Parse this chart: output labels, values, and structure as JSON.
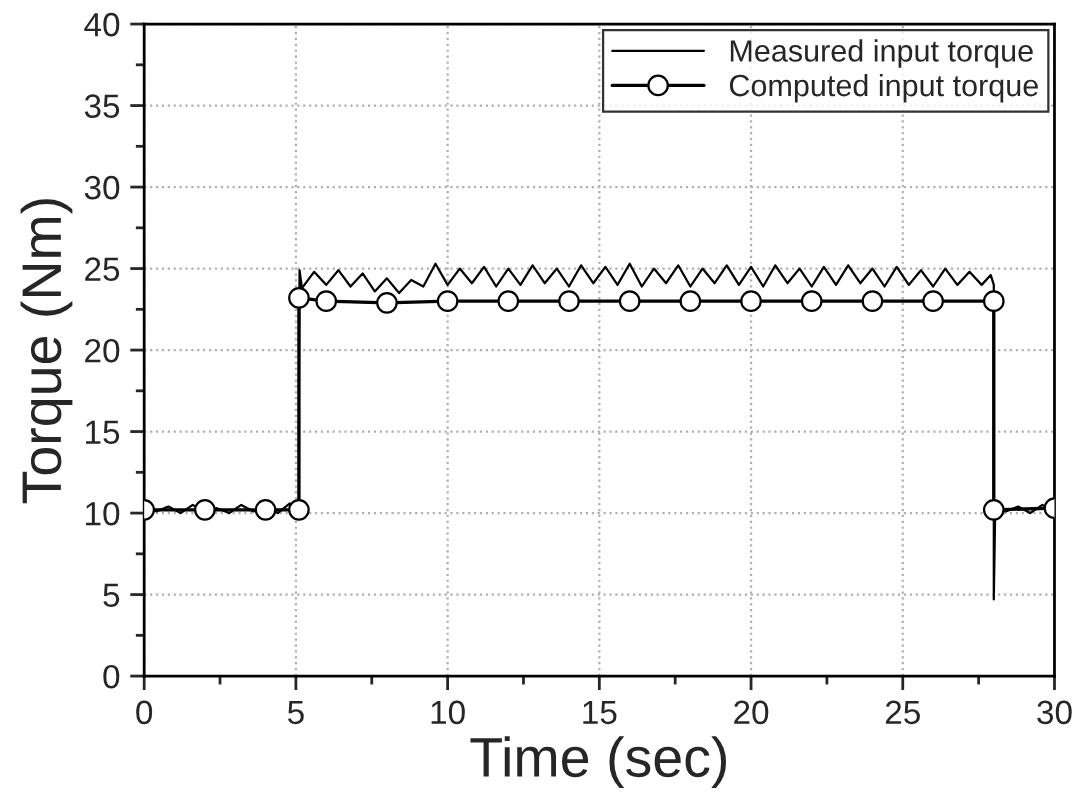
{
  "chart_data": {
    "type": "line",
    "xlabel": "Time (sec)",
    "ylabel": "Torque (Nm)",
    "xlim": [
      0,
      30
    ],
    "xticks": [
      0,
      5,
      10,
      15,
      20,
      25,
      30
    ],
    "ylim": [
      0,
      40
    ],
    "yticks": [
      0,
      5,
      10,
      15,
      20,
      25,
      30,
      35,
      40
    ],
    "grid": true,
    "legend": "top right",
    "line_style": "solid",
    "series": [
      {
        "name": "Measured input torque",
        "color": "#000000",
        "marker": "none",
        "x": [
          0,
          0.4,
          0.8,
          1.2,
          1.6,
          2.0,
          2.4,
          2.8,
          3.2,
          3.6,
          4.0,
          4.4,
          4.8,
          5.05,
          5.1,
          5.1,
          5.12,
          5.2,
          5.6,
          6.0,
          6.4,
          6.8,
          7.2,
          7.6,
          8.0,
          8.4,
          8.8,
          9.2,
          9.6,
          10.0,
          10.4,
          10.8,
          11.2,
          11.6,
          12.0,
          12.4,
          12.8,
          13.2,
          13.6,
          14.0,
          14.4,
          14.8,
          15.2,
          15.6,
          16.0,
          16.4,
          16.8,
          17.2,
          17.6,
          18.0,
          18.4,
          18.8,
          19.2,
          19.6,
          20.0,
          20.4,
          20.8,
          21.2,
          21.6,
          22.0,
          22.4,
          22.8,
          23.2,
          23.6,
          24.0,
          24.4,
          24.8,
          25.2,
          25.6,
          26.0,
          26.4,
          26.8,
          27.2,
          27.6,
          27.9,
          28.0,
          28.0,
          28.05,
          28.4,
          28.8,
          29.2,
          29.6,
          30.0
        ],
        "values": [
          10.6,
          10.1,
          10.4,
          10.0,
          10.5,
          10.1,
          10.3,
          10.0,
          10.5,
          10.1,
          10.4,
          10.0,
          10.6,
          10.2,
          10.3,
          18,
          24.9,
          23.8,
          24.8,
          24.0,
          24.9,
          23.9,
          24.7,
          23.6,
          24.4,
          23.5,
          24.3,
          23.9,
          25.3,
          24.0,
          25.0,
          24.1,
          25.1,
          23.9,
          25.0,
          24.0,
          25.2,
          24.1,
          25.0,
          23.9,
          25.2,
          24.1,
          25.1,
          24.0,
          25.3,
          23.9,
          25.0,
          24.1,
          25.2,
          23.9,
          25.0,
          24.1,
          25.2,
          24.0,
          25.1,
          23.9,
          25.2,
          24.1,
          25.0,
          23.9,
          25.1,
          24.0,
          25.2,
          24.1,
          25.0,
          23.9,
          25.1,
          24.0,
          24.9,
          23.9,
          25.0,
          24.0,
          24.8,
          24.0,
          24.6,
          24.0,
          4.7,
          10.5,
          10.1,
          10.4,
          10.0,
          10.5,
          10.2
        ]
      },
      {
        "name": "Computed input torque",
        "color": "#000000",
        "marker": "circle",
        "x": [
          0,
          2,
          4,
          5.1,
          5.1,
          6,
          8,
          10,
          12,
          14,
          16,
          18,
          20,
          22,
          24,
          26,
          28,
          28,
          30
        ],
        "values": [
          10.2,
          10.2,
          10.2,
          10.2,
          23.2,
          23.0,
          22.9,
          23.0,
          23.0,
          23.0,
          23.0,
          23.0,
          23.0,
          23.0,
          23.0,
          23.0,
          23.0,
          10.2,
          10.3
        ]
      }
    ]
  }
}
